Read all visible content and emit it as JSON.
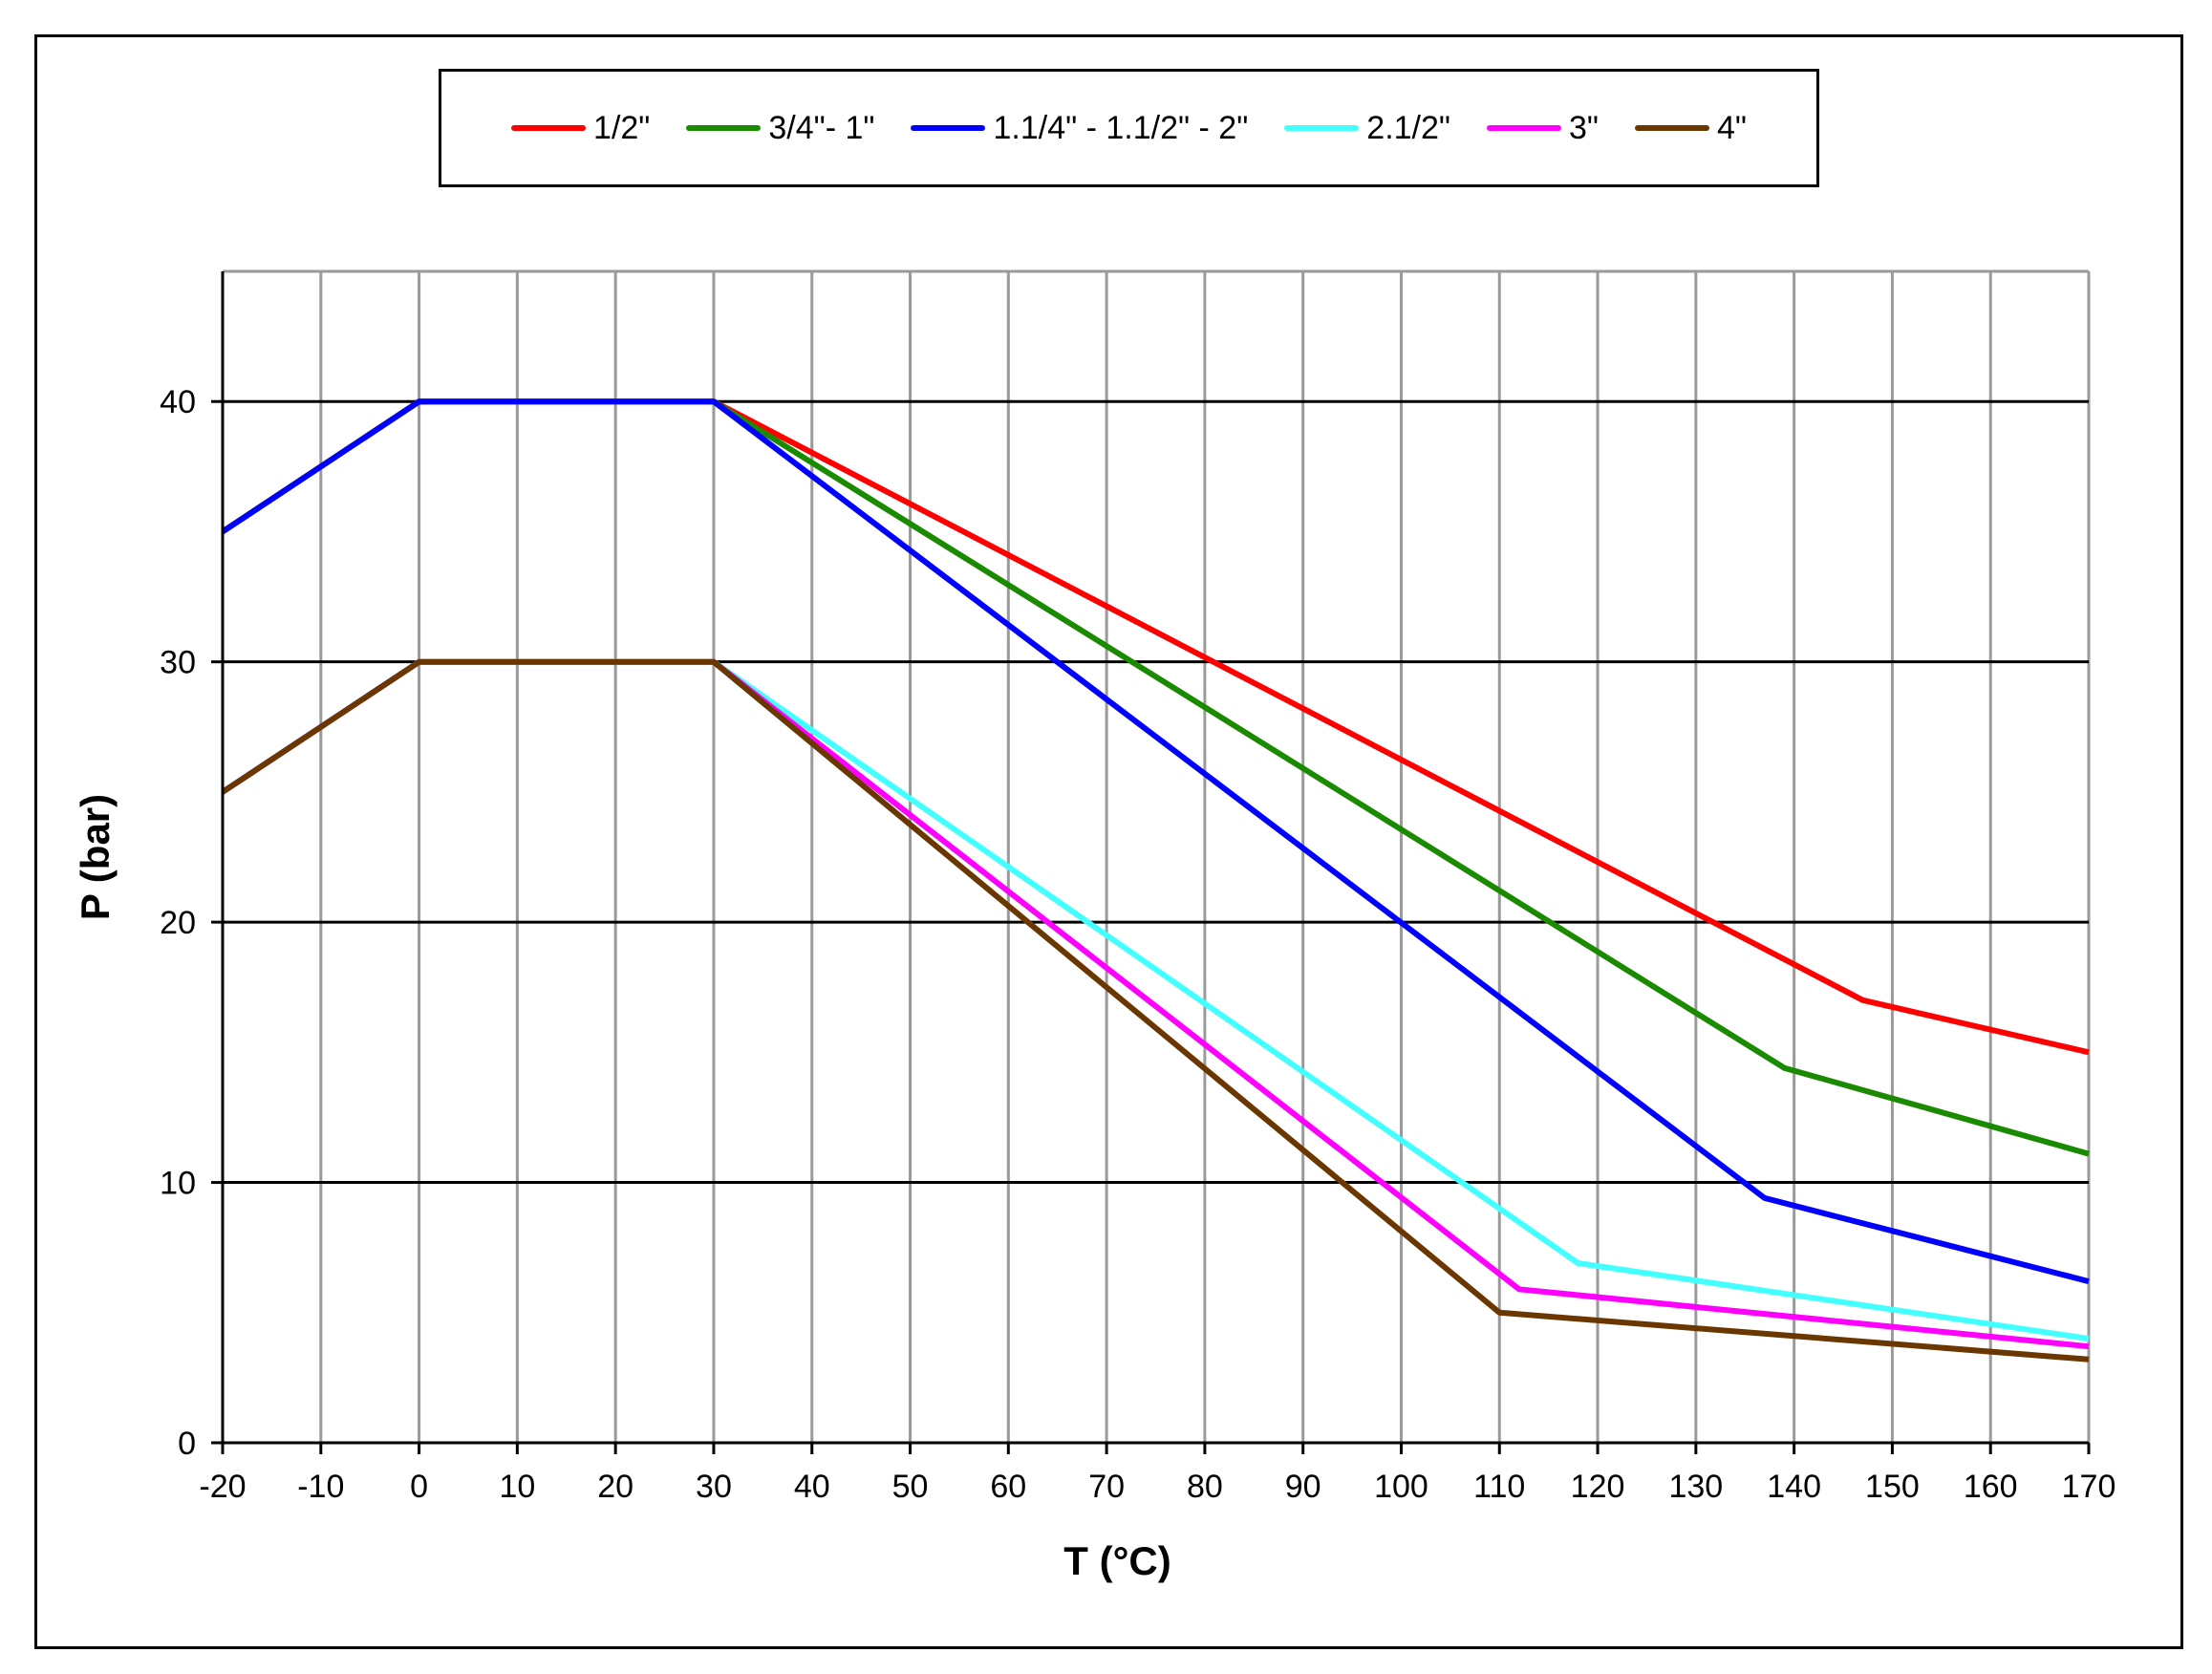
{
  "chart_data": {
    "type": "line",
    "xlabel": "T (°C)",
    "ylabel": "P (bar)",
    "xlim": [
      -20,
      170
    ],
    "ylim": [
      0,
      45
    ],
    "x_ticks": [
      -20,
      -10,
      0,
      10,
      20,
      30,
      40,
      50,
      60,
      70,
      80,
      90,
      100,
      110,
      120,
      130,
      140,
      150,
      160,
      170
    ],
    "y_ticks": [
      0,
      10,
      20,
      30,
      40
    ],
    "grid": {
      "vertical": true,
      "horizontal": true
    },
    "legend_position": "top-center",
    "series": [
      {
        "name": "1/2\"",
        "color": "#ff0000",
        "points": [
          [
            -20,
            35
          ],
          [
            0,
            40
          ],
          [
            30,
            40
          ],
          [
            147,
            17
          ],
          [
            170,
            15
          ]
        ]
      },
      {
        "name": "3/4\"- 1\"",
        "color": "#1a8a00",
        "points": [
          [
            -20,
            35
          ],
          [
            0,
            40
          ],
          [
            30,
            40
          ],
          [
            139,
            14.4
          ],
          [
            170,
            11.1
          ]
        ]
      },
      {
        "name": "1.1/4\" - 1.1/2\" - 2\"",
        "color": "#0000ff",
        "points": [
          [
            -20,
            35
          ],
          [
            0,
            40
          ],
          [
            30,
            40
          ],
          [
            137,
            9.4
          ],
          [
            170,
            6.2
          ]
        ]
      },
      {
        "name": "2.1/2\"",
        "color": "#44ffff",
        "points": [
          [
            -20,
            25
          ],
          [
            0,
            30
          ],
          [
            30,
            30
          ],
          [
            118,
            6.9
          ],
          [
            170,
            4.0
          ]
        ]
      },
      {
        "name": "3\"",
        "color": "#ff00ff",
        "points": [
          [
            -20,
            25
          ],
          [
            0,
            30
          ],
          [
            30,
            30
          ],
          [
            112,
            5.9
          ],
          [
            170,
            3.7
          ]
        ]
      },
      {
        "name": "4\"",
        "color": "#6b3700",
        "points": [
          [
            -20,
            25
          ],
          [
            0,
            30
          ],
          [
            30,
            30
          ],
          [
            110,
            5.0
          ],
          [
            170,
            3.2
          ]
        ]
      }
    ]
  }
}
